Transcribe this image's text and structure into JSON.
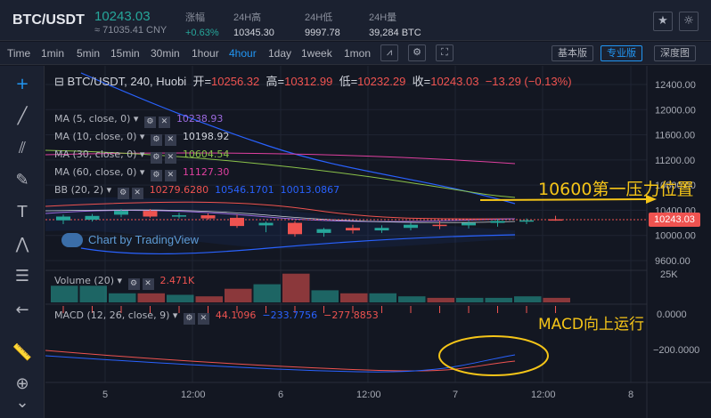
{
  "header": {
    "pair": "BTC/USDT",
    "price": "10243.03",
    "price_cny": "≈ 71035.41 CNY",
    "stats": [
      {
        "label": "涨幅",
        "value": "+0.63%",
        "up": true
      },
      {
        "label": "24H高",
        "value": "10345.30",
        "up": false
      },
      {
        "label": "24H低",
        "value": "9997.78",
        "up": false
      },
      {
        "label": "24H量",
        "value": "39,284 BTC",
        "up": false
      }
    ]
  },
  "toolbar": {
    "time_label": "Time",
    "intervals": [
      "1min",
      "5min",
      "15min",
      "30min",
      "1hour",
      "4hour",
      "1day",
      "1week",
      "1mon"
    ],
    "active_interval": "4hour",
    "views": [
      "基本版",
      "专业版",
      "深度图"
    ],
    "active_view": "专业版"
  },
  "legend": {
    "symbol": "BTC/USDT, 240, Huobi",
    "open_label": "开=",
    "open": "10256.32",
    "high_label": "高=",
    "high": "10312.99",
    "low_label": "低=",
    "low": "10232.29",
    "close_label": "收=",
    "close": "10243.03",
    "change": "−13.29 (−0.13%)",
    "indicators": [
      {
        "name": "MA (5, close, 0)",
        "value": "10238.93",
        "color": "#9c6ade"
      },
      {
        "name": "MA (10, close, 0)",
        "value": "10198.92",
        "color": "#d1d4dc"
      },
      {
        "name": "MA (30, close, 0)",
        "value": "10604.54",
        "color": "#8bc34a"
      },
      {
        "name": "MA (60, close, 0)",
        "value": "11127.30",
        "color": "#e040a0"
      },
      {
        "name": "BB (20, 2)",
        "values": [
          "10279.6280",
          "10546.1701",
          "10013.0867"
        ],
        "colors": [
          "#ef5350",
          "#2962ff",
          "#2962ff"
        ]
      }
    ],
    "volume": {
      "name": "Volume (20)",
      "value": "2.471K"
    },
    "macd": {
      "name": "MACD (12, 26, close, 9)",
      "values": [
        "44.1096",
        "233.7756",
        "277.8853"
      ],
      "prefixes": [
        "",
        "−",
        "−"
      ],
      "colors": [
        "#ef5350",
        "#2962ff",
        "#ef5350"
      ]
    }
  },
  "watermark": "Chart by TradingView",
  "annotations": {
    "resistance": "10600第一压力位置",
    "macd": "MACD向上运行",
    "color": "#f5c518"
  },
  "price_axis": [
    "12400.00",
    "12000.00",
    "11600.00",
    "11200.00",
    "10800.00",
    "10400.00",
    "10000.00",
    "9600.00"
  ],
  "current_price_tag": "10243.03",
  "volume_axis": "25K",
  "macd_axis": [
    "0.0000",
    "−200.0000"
  ],
  "time_axis": [
    "5",
    "12:00",
    "6",
    "12:00",
    "7",
    "12:00",
    "8"
  ],
  "colors": {
    "up": "#26a69a",
    "down": "#ef5350",
    "bg": "#131722",
    "accent": "#2196f3"
  },
  "chart_data": {
    "type": "candlestick",
    "candles": [
      {
        "o": 10240,
        "h": 10330,
        "l": 10180,
        "c": 10300
      },
      {
        "o": 10250,
        "h": 10340,
        "l": 10220,
        "c": 10310
      },
      {
        "o": 10330,
        "h": 10420,
        "l": 10290,
        "c": 10390
      },
      {
        "o": 10390,
        "h": 10420,
        "l": 10280,
        "c": 10300
      },
      {
        "o": 10300,
        "h": 10360,
        "l": 10270,
        "c": 10320
      },
      {
        "o": 10320,
        "h": 10350,
        "l": 10250,
        "c": 10270
      },
      {
        "o": 10280,
        "h": 10330,
        "l": 10120,
        "c": 10150
      },
      {
        "o": 10160,
        "h": 10220,
        "l": 10050,
        "c": 10200
      },
      {
        "o": 10200,
        "h": 10230,
        "l": 9980,
        "c": 10020
      },
      {
        "o": 10040,
        "h": 10120,
        "l": 9980,
        "c": 10100
      },
      {
        "o": 10120,
        "h": 10170,
        "l": 10030,
        "c": 10080
      },
      {
        "o": 10080,
        "h": 10160,
        "l": 10040,
        "c": 10120
      },
      {
        "o": 10120,
        "h": 10200,
        "l": 10080,
        "c": 10170
      },
      {
        "o": 10170,
        "h": 10230,
        "l": 10100,
        "c": 10160
      },
      {
        "o": 10160,
        "h": 10230,
        "l": 10110,
        "c": 10200
      },
      {
        "o": 10200,
        "h": 10260,
        "l": 10140,
        "c": 10230
      },
      {
        "o": 10220,
        "h": 10270,
        "l": 10180,
        "c": 10240
      },
      {
        "o": 10256.32,
        "h": 10312.99,
        "l": 10232.29,
        "c": 10243.03
      }
    ],
    "ylim": [
      9400,
      12600
    ]
  }
}
